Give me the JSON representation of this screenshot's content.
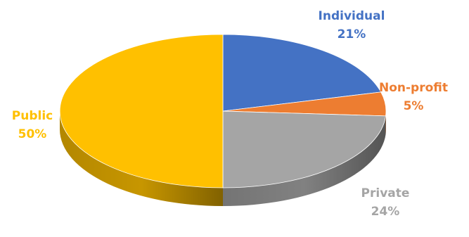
{
  "chart_data": {
    "type": "pie",
    "title": "",
    "categories": [
      "Individual",
      "Non-profit",
      "Private",
      "Public"
    ],
    "values": [
      21,
      5,
      24,
      50
    ],
    "value_labels": [
      "21%",
      "5%",
      "24%",
      "50%"
    ],
    "colors": [
      "#4472C4",
      "#ED7D31",
      "#A5A5A5",
      "#FFC000"
    ],
    "label_colors": [
      "#4472C4",
      "#ED7D31",
      "#A5A5A5",
      "#FFC000"
    ],
    "legend": "none",
    "style": "3d"
  }
}
